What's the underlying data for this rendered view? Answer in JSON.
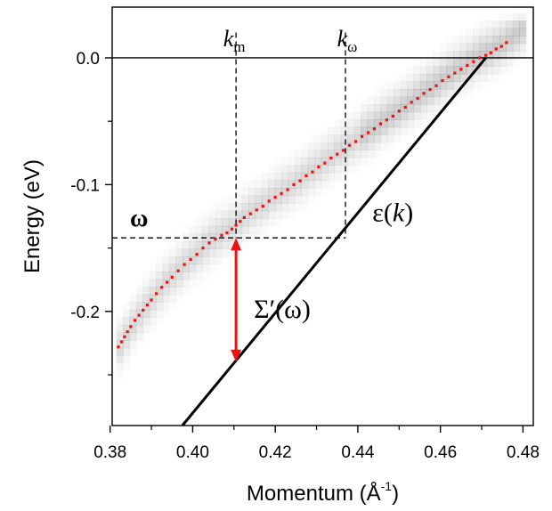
{
  "chart_data": {
    "type": "scatter",
    "xlabel": "Momentum (Å",
    "xlabel_sup": "-1",
    "xlabel_close": ")",
    "ylabel": "Energy (eV)",
    "xlim": [
      0.3805,
      0.4825
    ],
    "ylim": [
      -0.29,
      0.04
    ],
    "x_ticks": [
      0.38,
      0.4,
      0.42,
      0.44,
      0.46,
      0.48
    ],
    "x_tick_labels": [
      "0.38",
      "0.40",
      "0.42",
      "0.44",
      "0.46",
      "0.48"
    ],
    "y_ticks": [
      0.0,
      -0.1,
      -0.2
    ],
    "y_tick_labels": [
      "0.0",
      "-0.1",
      "-0.2"
    ],
    "colors": {
      "measured_points": "#ee1111",
      "bare_band": "#000000",
      "self_energy_arrow": "#ee1111",
      "spectral_intensity": "#888888"
    },
    "series": [
      {
        "kind": "bare-band-line",
        "x": [
          0.3975,
          0.471
        ],
        "y": [
          -0.29,
          0.0
        ]
      },
      {
        "kind": "measured-dispersion-points",
        "x": [
          0.382,
          0.3828,
          0.3835,
          0.3842,
          0.385,
          0.386,
          0.387,
          0.388,
          0.389,
          0.39,
          0.3912,
          0.3925,
          0.3938,
          0.395,
          0.3965,
          0.398,
          0.3995,
          0.401,
          0.4025,
          0.404,
          0.4055,
          0.407,
          0.4083,
          0.4095,
          0.4105,
          0.4115,
          0.4125,
          0.414,
          0.4155,
          0.417,
          0.4185,
          0.42,
          0.4215,
          0.423,
          0.4245,
          0.426,
          0.4275,
          0.429,
          0.4305,
          0.432,
          0.4335,
          0.435,
          0.4365,
          0.438,
          0.4395,
          0.441,
          0.4425,
          0.444,
          0.4455,
          0.447,
          0.4485,
          0.45,
          0.4515,
          0.453,
          0.4545,
          0.456,
          0.4575,
          0.459,
          0.4605,
          0.462,
          0.4635,
          0.465,
          0.4665,
          0.468,
          0.4695,
          0.471,
          0.4722,
          0.4735,
          0.4748,
          0.476
        ],
        "y": [
          -0.228,
          -0.224,
          -0.22,
          -0.216,
          -0.212,
          -0.207,
          -0.203,
          -0.199,
          -0.195,
          -0.191,
          -0.186,
          -0.181,
          -0.177,
          -0.173,
          -0.168,
          -0.163,
          -0.159,
          -0.155,
          -0.15,
          -0.146,
          -0.143,
          -0.14,
          -0.138,
          -0.135,
          -0.132,
          -0.129,
          -0.126,
          -0.123,
          -0.12,
          -0.117,
          -0.113,
          -0.11,
          -0.107,
          -0.104,
          -0.1,
          -0.097,
          -0.093,
          -0.09,
          -0.086,
          -0.083,
          -0.079,
          -0.076,
          -0.073,
          -0.069,
          -0.066,
          -0.062,
          -0.059,
          -0.056,
          -0.052,
          -0.049,
          -0.046,
          -0.042,
          -0.039,
          -0.035,
          -0.032,
          -0.028,
          -0.025,
          -0.022,
          -0.018,
          -0.015,
          -0.012,
          -0.009,
          -0.006,
          -0.003,
          0.0,
          0.002,
          0.004,
          0.007,
          0.009,
          0.012
        ]
      }
    ],
    "annotations": {
      "k_m": {
        "label": "k",
        "sub": "m",
        "x": 0.4105,
        "y_bottom": -0.142
      },
      "k_omega": {
        "label": "k",
        "sub": "ω",
        "x": 0.437,
        "y_bottom": -0.142
      },
      "omega_line": {
        "label": "ω",
        "y": -0.142,
        "x_start": 0.3805,
        "x_end": 0.437
      },
      "bare_band_label": {
        "prefix": "ε(",
        "var": "k",
        "suffix": ")"
      },
      "self_energy_label": "Σ′(ω)",
      "self_energy_arrow": {
        "x": 0.4105,
        "y_top": -0.142,
        "y_bottom": -0.24
      },
      "zero_line_y": 0.0
    },
    "intensity_map": {
      "band_offsets": [
        -0.018,
        -0.01,
        -0.004,
        0.0,
        0.006,
        0.012,
        0.02
      ],
      "band_opacity": [
        0.05,
        0.09,
        0.13,
        0.16,
        0.12,
        0.08,
        0.04
      ],
      "k_range": [
        0.3815,
        0.48
      ],
      "k_step": 0.0016,
      "energy_step": 0.006,
      "y_min": -0.265,
      "y_max": 0.03
    },
    "grid": false,
    "legend": "none"
  }
}
